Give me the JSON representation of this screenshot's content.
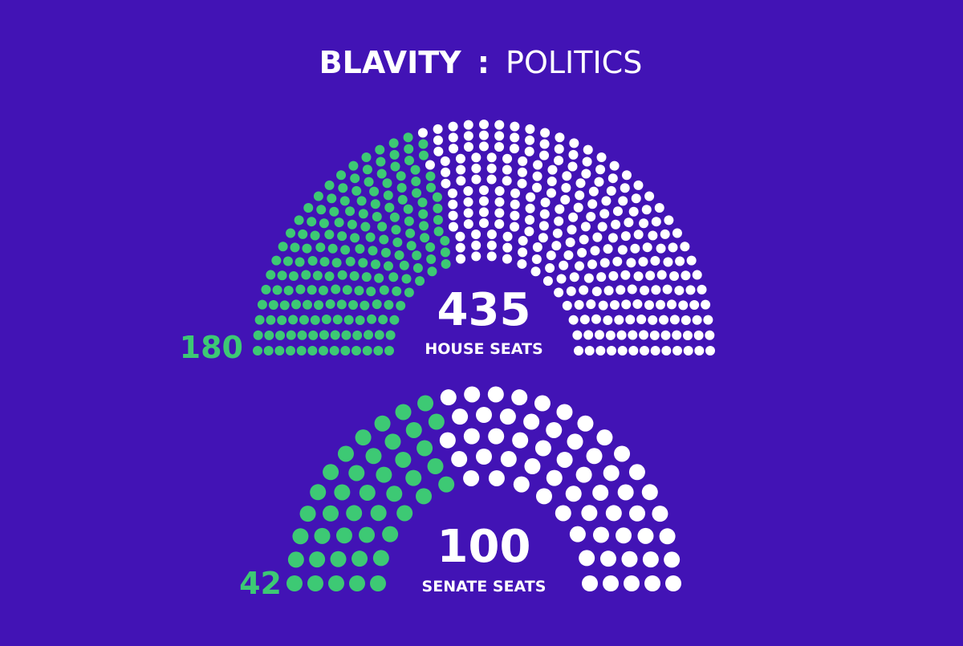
{
  "header": {
    "brand": "BLAVITY",
    "separator": ":",
    "section": "POLITICS"
  },
  "colors": {
    "background": "#4213B5",
    "highlight": "#3DC974",
    "remainder": "#FFFFFF"
  },
  "chart_data": [
    {
      "type": "parliament",
      "name": "house",
      "total": 435,
      "highlighted": 180,
      "total_label": "435",
      "caption": "HOUSE SEATS",
      "highlighted_label": "180",
      "highlight_color": "#3DC974",
      "remainder_color": "#FFFFFF"
    },
    {
      "type": "parliament",
      "name": "senate",
      "total": 100,
      "highlighted": 42,
      "total_label": "100",
      "caption": "SENATE SEATS",
      "highlighted_label": "42",
      "highlight_color": "#3DC974",
      "remainder_color": "#FFFFFF"
    }
  ]
}
